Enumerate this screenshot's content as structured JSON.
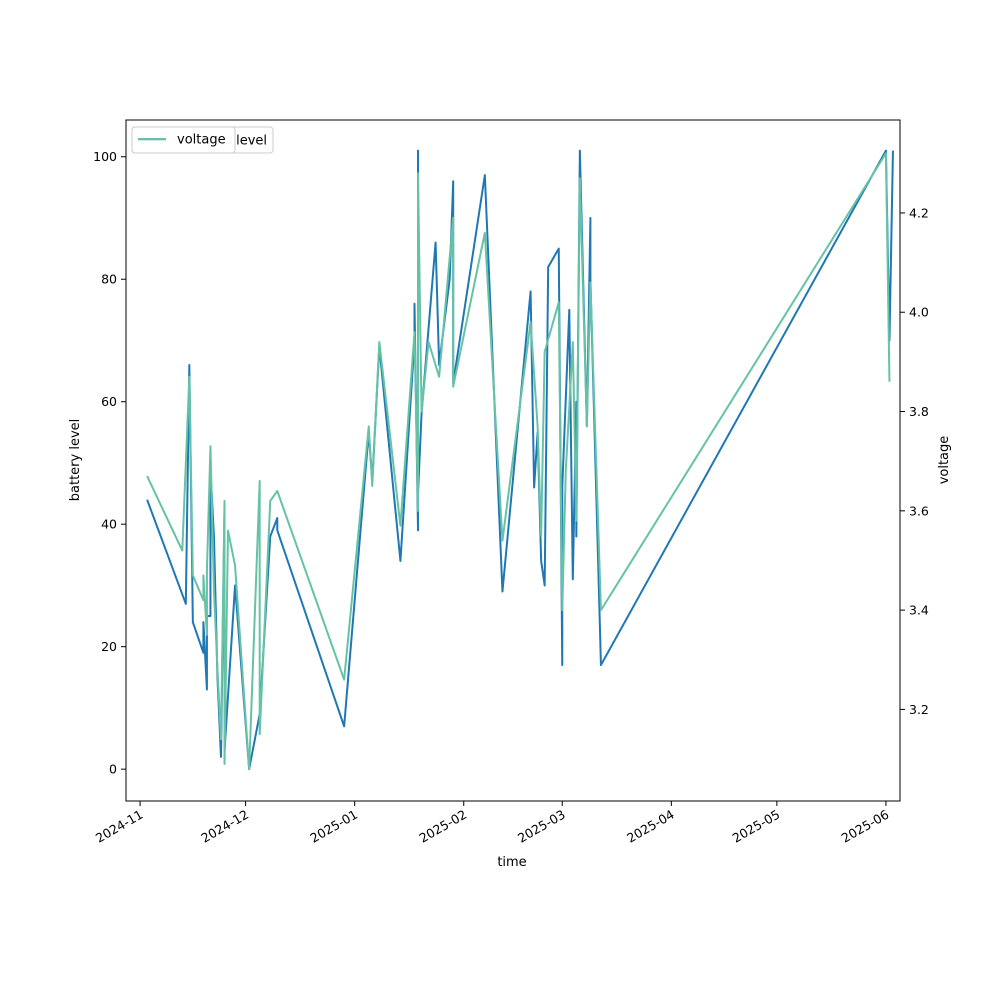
{
  "chart_data": {
    "type": "line",
    "title": "",
    "xlabel": "time",
    "ylabel_left": "battery level",
    "ylabel_right": "voltage",
    "x_ticks": [
      "2024-11",
      "2024-12",
      "2025-01",
      "2025-02",
      "2025-03",
      "2025-04",
      "2025-05",
      "2025-06"
    ],
    "y_left_ticks": [
      0,
      20,
      40,
      60,
      80,
      100
    ],
    "y_right_ticks": [
      3.2,
      3.4,
      3.6,
      3.8,
      4.0,
      4.2
    ],
    "x_range": [
      "2024-10-28",
      "2025-06-05"
    ],
    "ylim_left": [
      -5.2,
      106
    ],
    "ylim_right": [
      3.0155,
      4.3872
    ],
    "grid": false,
    "legend": {
      "placement": "upper-left",
      "entries": [
        "level",
        "voltage"
      ]
    },
    "colors": {
      "level": "#1f77b4",
      "voltage": "#66c2a5"
    },
    "series": [
      {
        "name": "level",
        "axis": "left",
        "points": [
          [
            "2024-11-03",
            44
          ],
          [
            "2024-11-14",
            27
          ],
          [
            "2024-11-15",
            66
          ],
          [
            "2024-11-16",
            24
          ],
          [
            "2024-11-19",
            19
          ],
          [
            "2024-11-19",
            24
          ],
          [
            "2024-11-20",
            13
          ],
          [
            "2024-11-20",
            25
          ],
          [
            "2024-11-21",
            25
          ],
          [
            "2024-11-21",
            49
          ],
          [
            "2024-11-22",
            38
          ],
          [
            "2024-11-23",
            15
          ],
          [
            "2024-11-24",
            2
          ],
          [
            "2024-11-25",
            42
          ],
          [
            "2024-11-25",
            3
          ],
          [
            "2024-11-28",
            30
          ],
          [
            "2024-12-02",
            0
          ],
          [
            "2024-12-05",
            9
          ],
          [
            "2024-12-08",
            38
          ],
          [
            "2024-12-10",
            41
          ],
          [
            "2024-12-10",
            39
          ],
          [
            "2024-12-29",
            7
          ],
          [
            "2025-01-05",
            55
          ],
          [
            "2025-01-06",
            47
          ],
          [
            "2025-01-08",
            69
          ],
          [
            "2025-01-14",
            34
          ],
          [
            "2025-01-18",
            70
          ],
          [
            "2025-01-18",
            76
          ],
          [
            "2025-01-19",
            39
          ],
          [
            "2025-01-19",
            101
          ],
          [
            "2025-01-19",
            45
          ],
          [
            "2025-01-20",
            58
          ],
          [
            "2025-01-24",
            86
          ],
          [
            "2025-01-25",
            66
          ],
          [
            "2025-01-28",
            80
          ],
          [
            "2025-01-29",
            96
          ],
          [
            "2025-01-29",
            63
          ],
          [
            "2025-02-07",
            97
          ],
          [
            "2025-02-12",
            29
          ],
          [
            "2025-02-20",
            78
          ],
          [
            "2025-02-21",
            46
          ],
          [
            "2025-02-22",
            55
          ],
          [
            "2025-02-23",
            34
          ],
          [
            "2025-02-24",
            30
          ],
          [
            "2025-02-25",
            82
          ],
          [
            "2025-02-28",
            85
          ],
          [
            "2025-03-01",
            17
          ],
          [
            "2025-03-01",
            46
          ],
          [
            "2025-03-03",
            75
          ],
          [
            "2025-03-04",
            31
          ],
          [
            "2025-03-05",
            60
          ],
          [
            "2025-03-05",
            38
          ],
          [
            "2025-03-06",
            101
          ],
          [
            "2025-03-08",
            56
          ],
          [
            "2025-03-09",
            90
          ],
          [
            "2025-03-09",
            80
          ],
          [
            "2025-03-12",
            17
          ],
          [
            "2025-06-01",
            101
          ],
          [
            "2025-06-02",
            70
          ],
          [
            "2025-06-03",
            101
          ]
        ]
      },
      {
        "name": "voltage",
        "axis": "right",
        "points": [
          [
            "2024-11-03",
            3.67
          ],
          [
            "2024-11-13",
            3.52
          ],
          [
            "2024-11-15",
            3.87
          ],
          [
            "2024-11-16",
            3.47
          ],
          [
            "2024-11-19",
            3.42
          ],
          [
            "2024-11-19",
            3.47
          ],
          [
            "2024-11-20",
            3.35
          ],
          [
            "2024-11-20",
            3.48
          ],
          [
            "2024-11-21",
            3.73
          ],
          [
            "2024-11-22",
            3.44
          ],
          [
            "2024-11-23",
            3.28
          ],
          [
            "2024-11-24",
            3.14
          ],
          [
            "2024-11-25",
            3.62
          ],
          [
            "2024-11-25",
            3.09
          ],
          [
            "2024-11-26",
            3.56
          ],
          [
            "2024-11-28",
            3.49
          ],
          [
            "2024-12-02",
            3.08
          ],
          [
            "2024-12-05",
            3.66
          ],
          [
            "2024-12-05",
            3.15
          ],
          [
            "2024-12-08",
            3.62
          ],
          [
            "2024-12-10",
            3.64
          ],
          [
            "2024-12-29",
            3.26
          ],
          [
            "2025-01-05",
            3.77
          ],
          [
            "2025-01-06",
            3.65
          ],
          [
            "2025-01-08",
            3.94
          ],
          [
            "2025-01-14",
            3.57
          ],
          [
            "2025-01-18",
            3.96
          ],
          [
            "2025-01-19",
            3.6
          ],
          [
            "2025-01-19",
            4.28
          ],
          [
            "2025-01-20",
            3.8
          ],
          [
            "2025-01-22",
            3.94
          ],
          [
            "2025-01-25",
            3.87
          ],
          [
            "2025-01-29",
            4.19
          ],
          [
            "2025-01-29",
            3.85
          ],
          [
            "2025-02-07",
            4.16
          ],
          [
            "2025-02-12",
            3.54
          ],
          [
            "2025-02-20",
            3.98
          ],
          [
            "2025-02-22",
            3.77
          ],
          [
            "2025-02-23",
            3.55
          ],
          [
            "2025-02-24",
            3.92
          ],
          [
            "2025-02-28",
            4.02
          ],
          [
            "2025-03-01",
            3.4
          ],
          [
            "2025-03-02",
            3.68
          ],
          [
            "2025-03-04",
            3.94
          ],
          [
            "2025-03-05",
            3.58
          ],
          [
            "2025-03-06",
            4.27
          ],
          [
            "2025-03-08",
            3.77
          ],
          [
            "2025-03-09",
            4.06
          ],
          [
            "2025-03-12",
            3.4
          ],
          [
            "2025-06-01",
            4.32
          ],
          [
            "2025-06-02",
            3.86
          ]
        ]
      }
    ]
  }
}
